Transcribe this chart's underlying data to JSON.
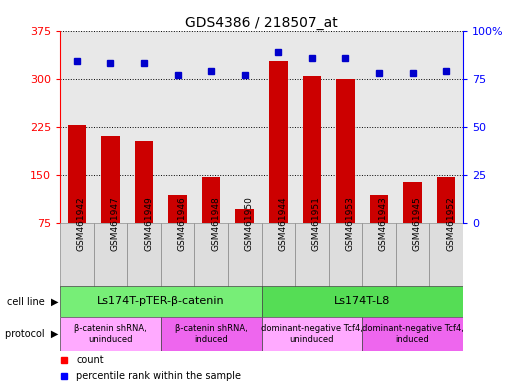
{
  "title": "GDS4386 / 218507_at",
  "samples": [
    "GSM461942",
    "GSM461947",
    "GSM461949",
    "GSM461946",
    "GSM461948",
    "GSM461950",
    "GSM461944",
    "GSM461951",
    "GSM461953",
    "GSM461943",
    "GSM461945",
    "GSM461952"
  ],
  "counts": [
    228,
    210,
    202,
    118,
    147,
    97,
    328,
    305,
    300,
    118,
    138,
    147
  ],
  "percentiles": [
    84,
    83,
    83,
    77,
    79,
    77,
    89,
    86,
    86,
    78,
    78,
    79
  ],
  "ylim_left": [
    75,
    375
  ],
  "ylim_right": [
    0,
    100
  ],
  "yticks_left": [
    75,
    150,
    225,
    300,
    375
  ],
  "yticks_right": [
    0,
    25,
    50,
    75,
    100
  ],
  "bar_color": "#cc0000",
  "dot_color": "#0000cc",
  "plot_bg": "#e8e8e8",
  "cell_line_groups": [
    {
      "label": "Ls174T-pTER-β-catenin",
      "start": 0,
      "end": 6,
      "color": "#77ee77"
    },
    {
      "label": "Ls174T-L8",
      "start": 6,
      "end": 12,
      "color": "#55dd55"
    }
  ],
  "protocol_groups": [
    {
      "label": "β-catenin shRNA,\nuninduced",
      "start": 0,
      "end": 3,
      "color": "#ffaaff"
    },
    {
      "label": "β-catenin shRNA,\ninduced",
      "start": 3,
      "end": 6,
      "color": "#ee66ee"
    },
    {
      "label": "dominant-negative Tcf4,\nuninduced",
      "start": 6,
      "end": 9,
      "color": "#ffaaff"
    },
    {
      "label": "dominant-negative Tcf4,\ninduced",
      "start": 9,
      "end": 12,
      "color": "#ee66ee"
    }
  ],
  "bar_width": 0.55,
  "tick_label_fontsize": 6.5,
  "title_fontsize": 10,
  "cell_line_fontsize": 8,
  "protocol_fontsize": 6,
  "legend_fontsize": 7
}
